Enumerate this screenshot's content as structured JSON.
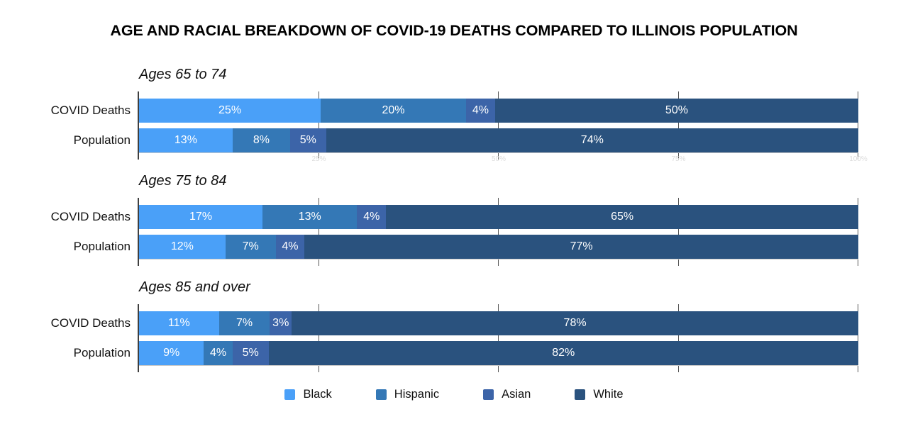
{
  "title": "AGE AND RACIAL BREAKDOWN OF COVID-19 DEATHS COMPARED TO ILLINOIS POPULATION",
  "chart_data": {
    "type": "bar",
    "orientation": "horizontal-stacked",
    "unit": "%",
    "axis": {
      "range": [
        0,
        100
      ],
      "ticks": [
        25,
        50,
        75,
        100
      ],
      "tick_labels": [
        "25%",
        "50%",
        "75%",
        "100%"
      ],
      "grid": true
    },
    "legend_position": "bottom",
    "legend": [
      {
        "name": "Black",
        "color": "#4AA0F8"
      },
      {
        "name": "Hispanic",
        "color": "#3478B6"
      },
      {
        "name": "Asian",
        "color": "#3C64A8"
      },
      {
        "name": "White",
        "color": "#2A527E"
      }
    ],
    "groups": [
      {
        "title": "Ages 65 to 74",
        "rows": [
          {
            "label": "COVID Deaths",
            "values": [
              25,
              20,
              4,
              50
            ],
            "labels": [
              "25%",
              "20%",
              "4%",
              "50%"
            ]
          },
          {
            "label": "Population",
            "values": [
              13,
              8,
              5,
              74
            ],
            "labels": [
              "13%",
              "8%",
              "5%",
              "74%"
            ]
          }
        ]
      },
      {
        "title": "Ages 75 to 84",
        "rows": [
          {
            "label": "COVID Deaths",
            "values": [
              17,
              13,
              4,
              65
            ],
            "labels": [
              "17%",
              "13%",
              "4%",
              "65%"
            ]
          },
          {
            "label": "Population",
            "values": [
              12,
              7,
              4,
              77
            ],
            "labels": [
              "12%",
              "7%",
              "4%",
              "77%"
            ]
          }
        ]
      },
      {
        "title": "Ages 85 and over",
        "rows": [
          {
            "label": "COVID Deaths",
            "values": [
              11,
              7,
              3,
              78
            ],
            "labels": [
              "11%",
              "7%",
              "3%",
              "78%"
            ]
          },
          {
            "label": "Population",
            "values": [
              9,
              4,
              5,
              82
            ],
            "labels": [
              "9%",
              "4%",
              "5%",
              "82%"
            ]
          }
        ]
      }
    ]
  }
}
